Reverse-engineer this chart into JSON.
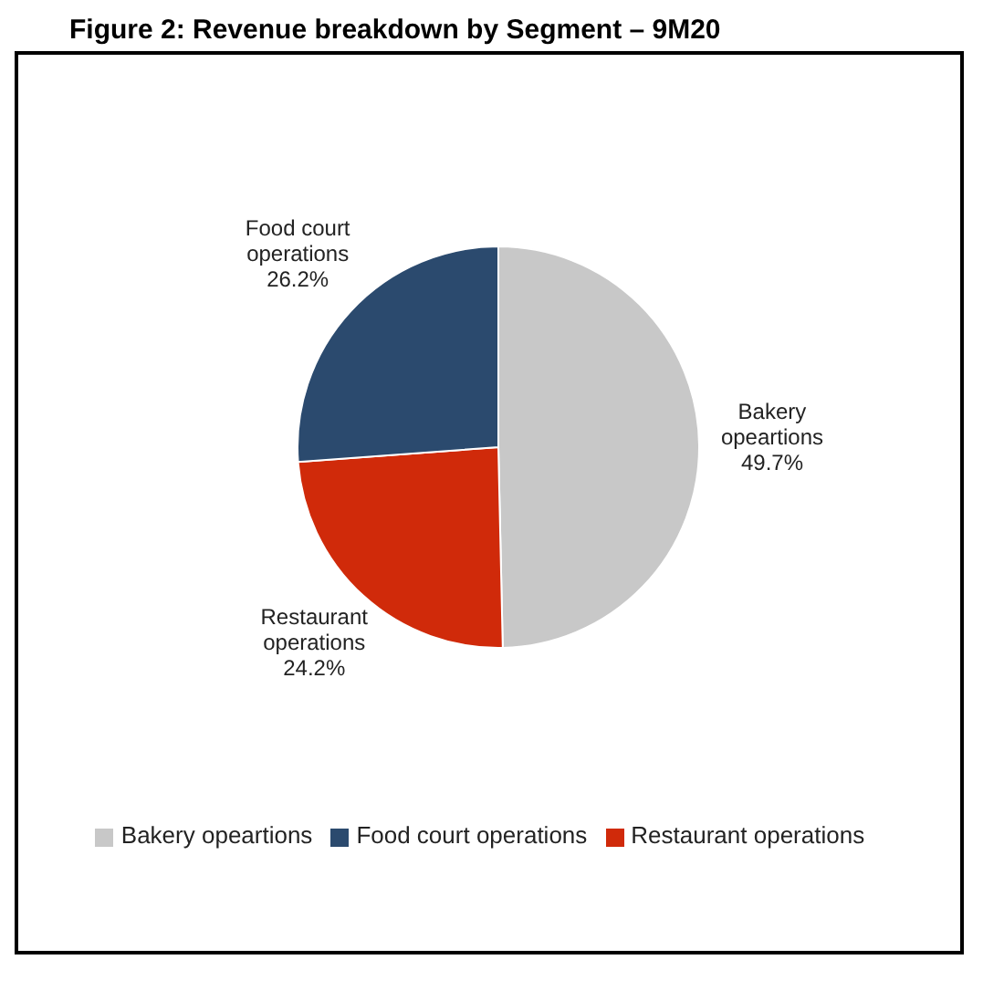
{
  "chart_data": {
    "type": "pie",
    "title": "Figure 2: Revenue breakdown by Segment – 9M20",
    "categories": [
      "Bakery opeartions",
      "Restaurant operations",
      "Food court operations"
    ],
    "values": [
      49.7,
      24.2,
      26.2
    ],
    "colors": [
      "#c8c8c8",
      "#d02a0a",
      "#2b4a6e"
    ],
    "value_labels": [
      "49.7%",
      "24.2%",
      "26.2%"
    ],
    "legend": "bottom"
  }
}
